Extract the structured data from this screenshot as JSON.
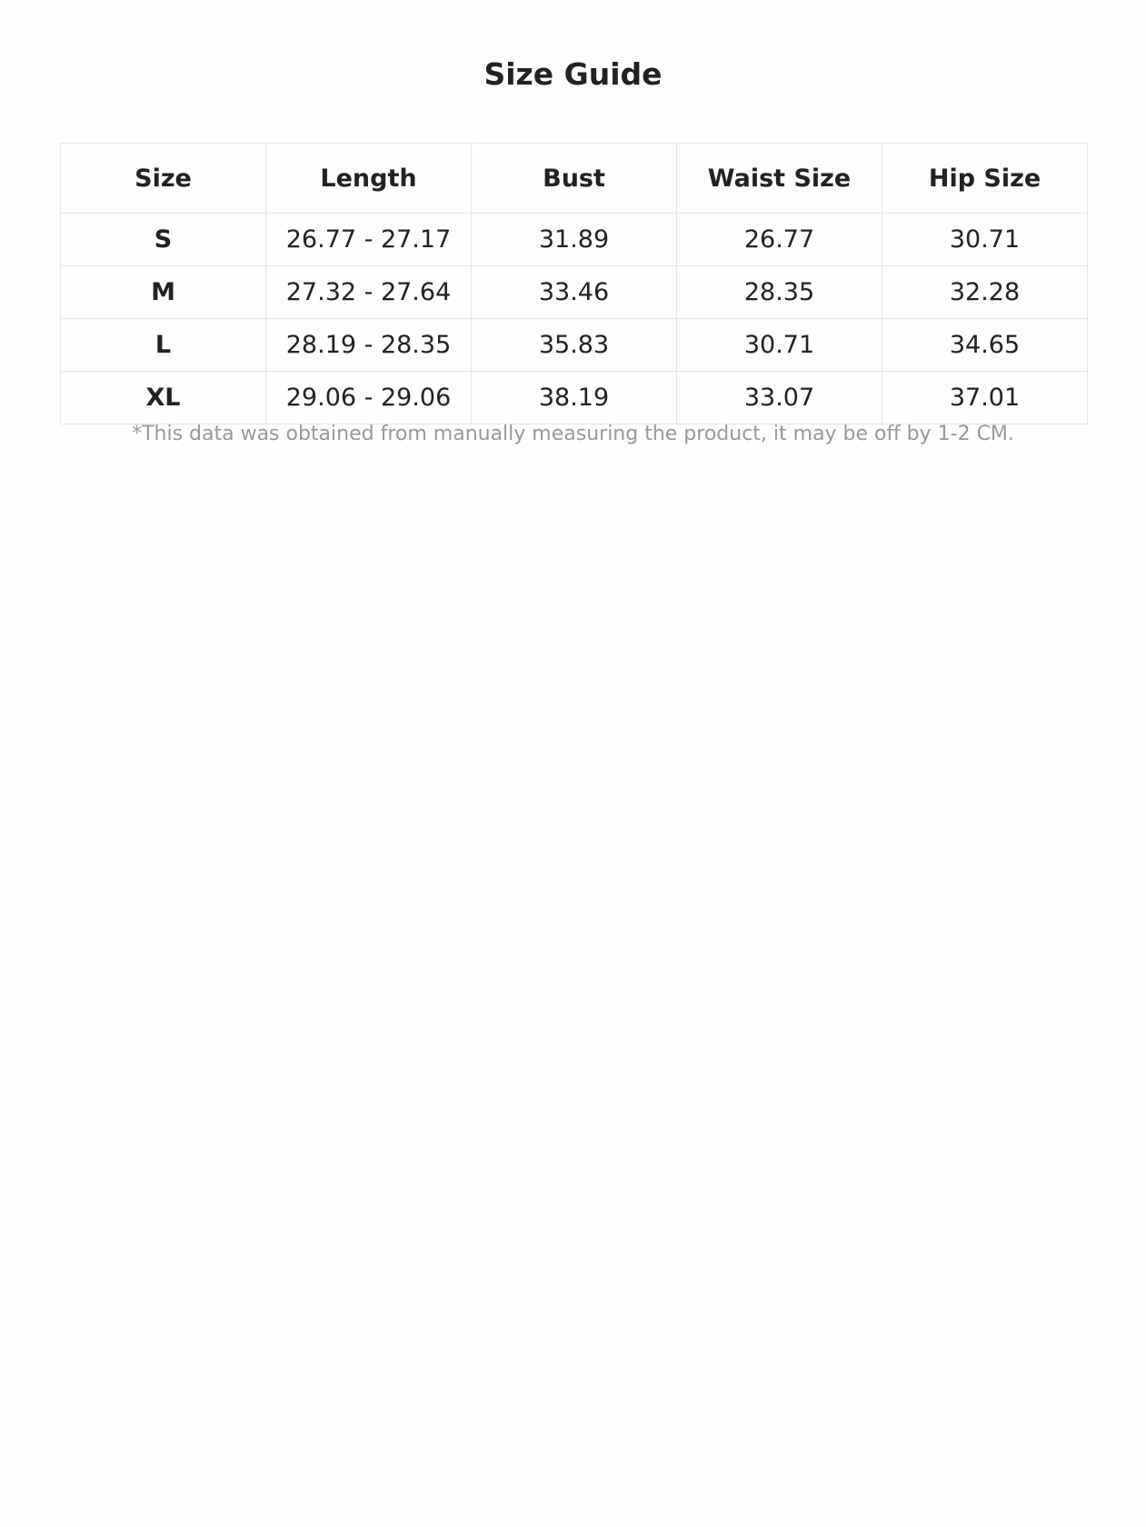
{
  "title": "Size Guide",
  "table": {
    "headers": [
      "Size",
      "Length",
      "Bust",
      "Waist Size",
      "Hip Size"
    ],
    "rows": [
      [
        "S",
        "26.77 - 27.17",
        "31.89",
        "26.77",
        "30.71"
      ],
      [
        "M",
        "27.32 - 27.64",
        "33.46",
        "28.35",
        "32.28"
      ],
      [
        "L",
        "28.19 - 28.35",
        "35.83",
        "30.71",
        "34.65"
      ],
      [
        "XL",
        "29.06 - 29.06",
        "38.19",
        "33.07",
        "37.01"
      ]
    ]
  },
  "note": "*This data was obtained from manually measuring the product, it may be off by 1-2 CM."
}
